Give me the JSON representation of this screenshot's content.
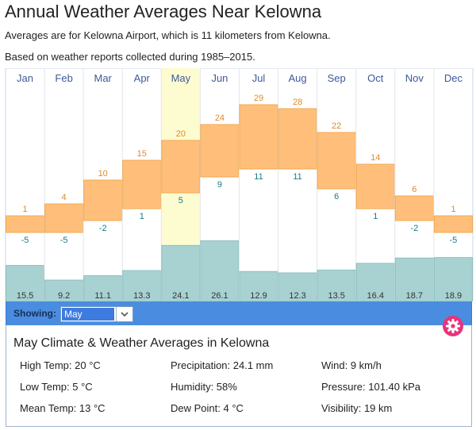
{
  "header": {
    "title": "Annual Weather Averages Near Kelowna",
    "line1": "Averages are for Kelowna Airport, which is 11 kilometers from Kelowna.",
    "line2": "Based on weather reports collected during 1985–2015."
  },
  "chart_data": {
    "type": "bar",
    "categories": [
      "Jan",
      "Feb",
      "Mar",
      "Apr",
      "May",
      "Jun",
      "Jul",
      "Aug",
      "Sep",
      "Oct",
      "Nov",
      "Dec"
    ],
    "selected_month": "May",
    "series": [
      {
        "name": "",
        "role": "high_temp",
        "values": [
          1,
          4,
          10,
          15,
          20,
          24,
          29,
          28,
          22,
          14,
          6,
          1
        ]
      },
      {
        "name": "",
        "role": "low_temp",
        "values": [
          -5,
          -5,
          -2,
          1,
          5,
          9,
          11,
          11,
          6,
          1,
          -2,
          -5
        ]
      },
      {
        "name": "",
        "role": "precipitation",
        "values": [
          "15.5",
          "9.2",
          "11.1",
          "13.3",
          "24.1",
          "26.1",
          "12.9",
          "12.3",
          "13.5",
          "16.4",
          "18.7",
          "18.9"
        ]
      }
    ],
    "title": "",
    "colors": {
      "temp_band": "#ffbf7a",
      "temp_border": "#f0a850",
      "high_label": "#e08a2c",
      "low_label": "#1a7a8a",
      "precip": "#a8d2d2",
      "precip_border": "#8ebebe",
      "selected_column": "#fdfbd0",
      "month_label": "#3b5a9a"
    },
    "grid": true
  },
  "showing": {
    "label": "Showing:",
    "value": "May",
    "arrow_icon": "chevron-down-icon"
  },
  "settings": {
    "icon": "gear-icon",
    "color": "#e8347a"
  },
  "details": {
    "title": "May Climate & Weather Averages in Kelowna",
    "stats": [
      "High Temp: 20 °C",
      "Precipitation: 24.1 mm",
      "Wind: 9 km/h",
      "Low Temp: 5 °C",
      "Humidity: 58%",
      "Pressure: 101.40 kPa",
      "Mean Temp: 13 °C",
      "Dew Point: 4 °C",
      "Visibility: 19 km"
    ]
  }
}
